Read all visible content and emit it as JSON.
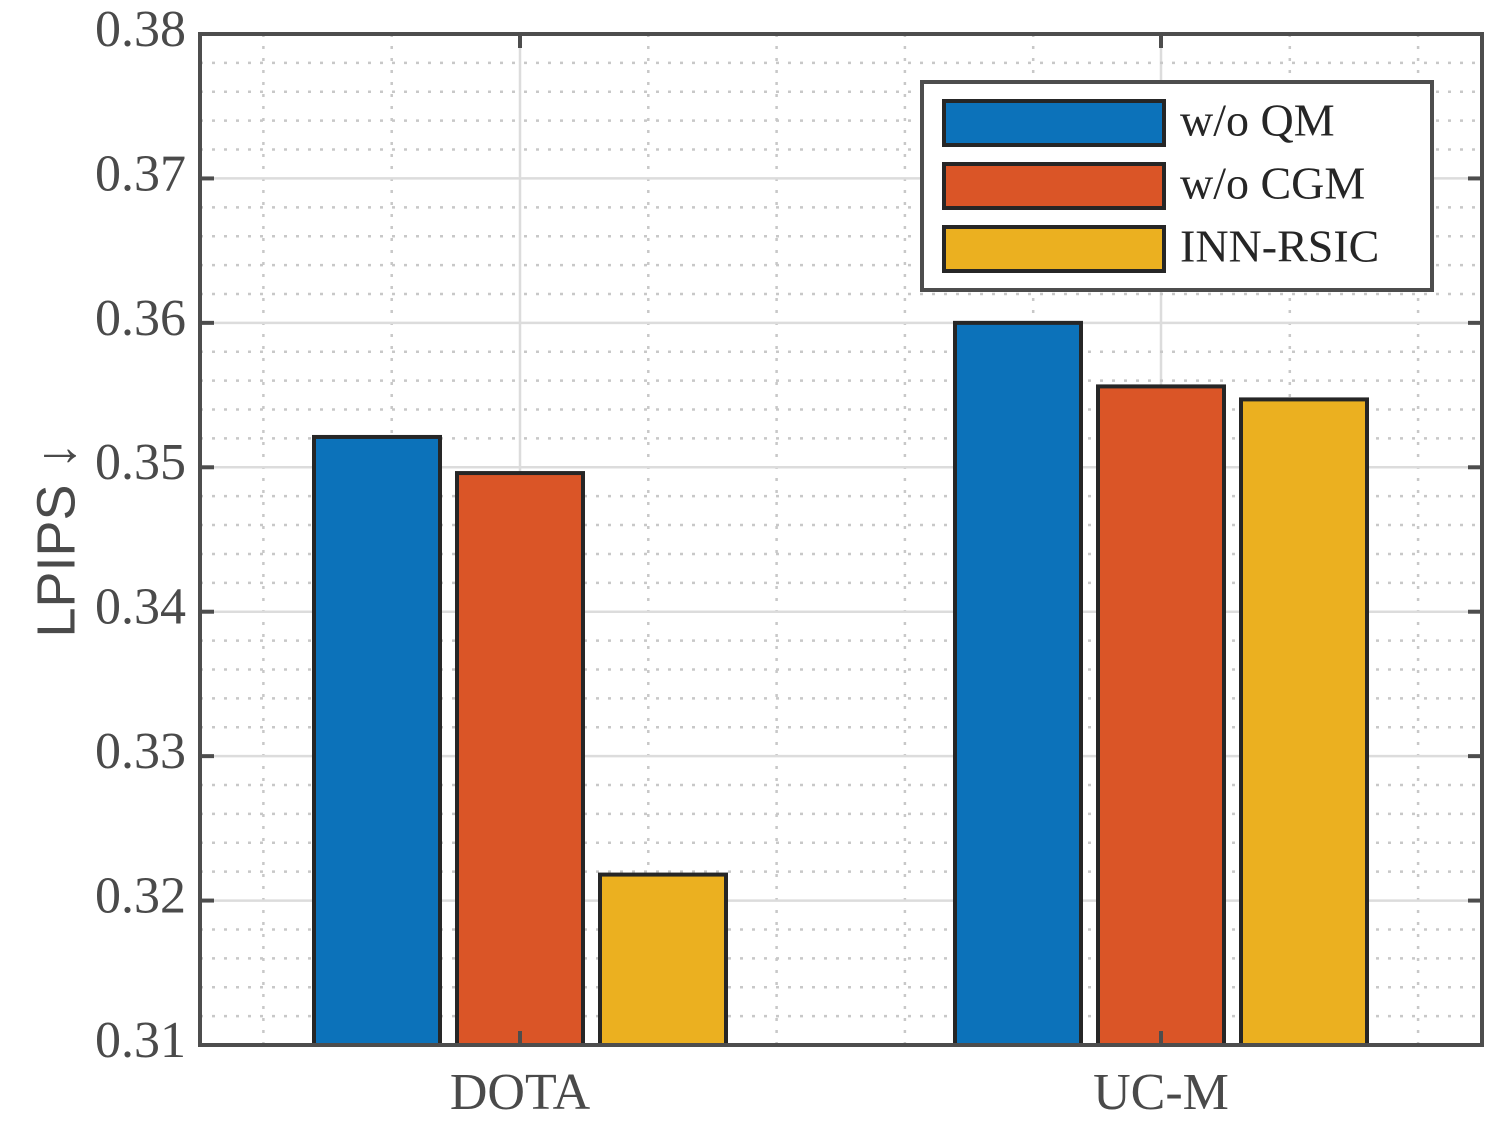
{
  "chart_data": {
    "type": "bar",
    "title": "",
    "xlabel": "",
    "ylabel": "LPIPS ↓",
    "ylim": [
      0.31,
      0.38
    ],
    "yticks": [
      "0.31",
      "0.32",
      "0.33",
      "0.34",
      "0.35",
      "0.36",
      "0.37",
      "0.38"
    ],
    "grid": true,
    "legend_position": "top-right",
    "categories": [
      "DOTA",
      "UC-M"
    ],
    "series": [
      {
        "name": "w/o QM",
        "color": "#0c72ba",
        "values": [
          0.3521,
          0.36
        ]
      },
      {
        "name": "w/o CGM",
        "color": "#da5527",
        "values": [
          0.3496,
          0.3556
        ]
      },
      {
        "name": "INN-RSIC",
        "color": "#ebb020",
        "values": [
          0.3218,
          0.3547
        ]
      }
    ]
  }
}
